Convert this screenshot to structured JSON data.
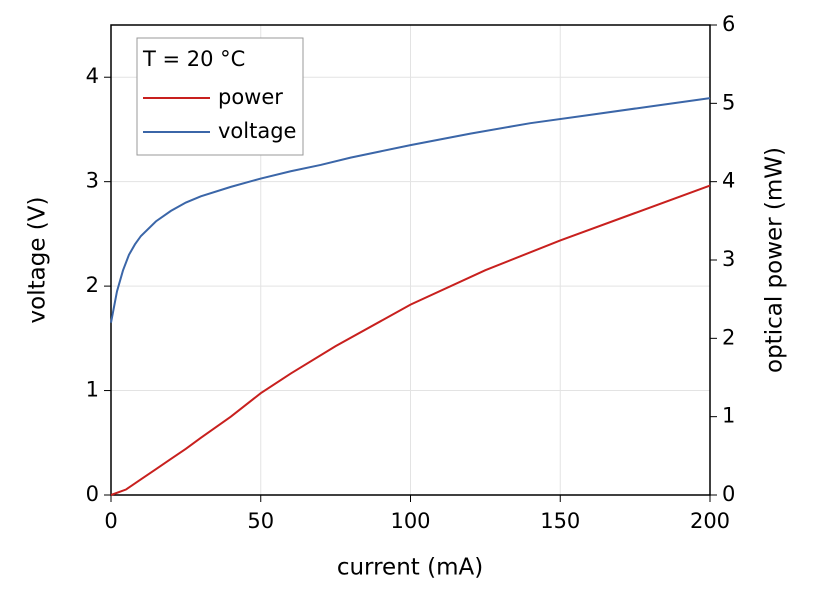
{
  "chart_data": {
    "type": "line",
    "legend_title": "T = 20 °C",
    "xlabel": "current (mA)",
    "ylabel": "voltage (V)",
    "y2label": "optical power (mW)",
    "xlim": [
      0,
      200
    ],
    "xticks": [
      0,
      50,
      100,
      150,
      200
    ],
    "ylim": [
      0,
      4.5
    ],
    "yticks": [
      0,
      1,
      2,
      3,
      4
    ],
    "y2lim": [
      0,
      6
    ],
    "y2ticks": [
      0,
      1,
      2,
      3,
      4,
      5,
      6
    ],
    "grid": true,
    "legend": "upper left",
    "series": [
      {
        "name": "power",
        "color": "#c8201e",
        "axis": "y2",
        "x": [
          0,
          5,
          10,
          15,
          20,
          25,
          30,
          40,
          50,
          60,
          75,
          100,
          125,
          150,
          175,
          200
        ],
        "values": [
          0,
          0.07,
          0.2,
          0.33,
          0.46,
          0.59,
          0.73,
          1.0,
          1.3,
          1.55,
          1.9,
          2.43,
          2.87,
          3.25,
          3.6,
          3.95
        ]
      },
      {
        "name": "voltage",
        "color": "#3b66a8",
        "x": [
          0,
          2,
          4,
          6,
          8,
          10,
          15,
          20,
          25,
          30,
          40,
          50,
          60,
          70,
          80,
          90,
          100,
          120,
          140,
          160,
          180,
          200
        ],
        "values": [
          1.65,
          1.95,
          2.15,
          2.3,
          2.4,
          2.48,
          2.62,
          2.72,
          2.8,
          2.86,
          2.95,
          3.03,
          3.1,
          3.16,
          3.23,
          3.29,
          3.35,
          3.46,
          3.56,
          3.64,
          3.72,
          3.8
        ]
      }
    ]
  }
}
